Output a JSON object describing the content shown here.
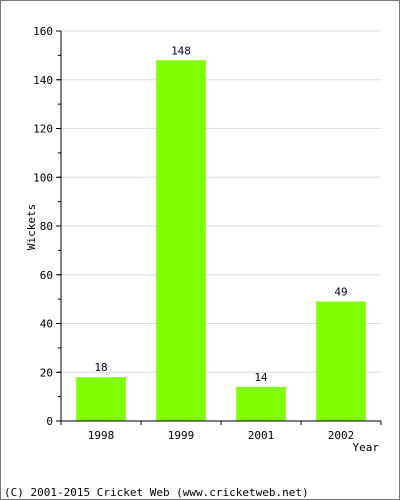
{
  "chart_data": {
    "type": "bar",
    "categories": [
      "1998",
      "1999",
      "2001",
      "2002"
    ],
    "values": [
      18,
      148,
      14,
      49
    ],
    "data_labels": [
      "18",
      "148",
      "14",
      "49"
    ],
    "xlabel": "Year",
    "ylabel": "Wickets",
    "ylim": [
      0,
      160
    ],
    "yticks": [
      0,
      20,
      40,
      60,
      80,
      100,
      120,
      140,
      160
    ],
    "grid": true,
    "bar_color": "#80ff00"
  },
  "footer": {
    "copyright": "(C) 2001-2015 Cricket Web (www.cricketweb.net)"
  }
}
